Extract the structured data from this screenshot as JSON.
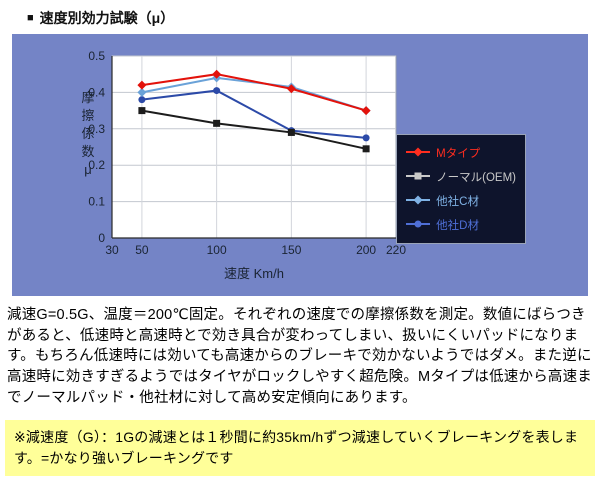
{
  "header": {
    "bullet": "■",
    "title": "速度別効力試験（μ）"
  },
  "chart_data": {
    "type": "line",
    "x": [
      50,
      100,
      150,
      200
    ],
    "series": [
      {
        "name": "Mタイプ",
        "values": [
          0.42,
          0.45,
          0.41,
          0.35
        ],
        "color": "#e3120b",
        "legend_color": "#ff2d1f",
        "marker": "diamond"
      },
      {
        "name": "ノーマル(OEM)",
        "values": [
          0.35,
          0.315,
          0.29,
          0.245
        ],
        "color": "#1c1c1c",
        "legend_color": "#c9c9c9",
        "marker": "square"
      },
      {
        "name": "他社C材",
        "values": [
          0.4,
          0.44,
          0.415,
          0.35
        ],
        "color": "#6aa2d8",
        "legend_color": "#7fb2e5",
        "marker": "diamond"
      },
      {
        "name": "他社D材",
        "values": [
          0.38,
          0.405,
          0.295,
          0.275
        ],
        "color": "#2c4aa8",
        "legend_color": "#4f6fd6",
        "marker": "circle"
      }
    ],
    "xlabel": "速度 Km/h",
    "ylabel": "摩擦係数μ",
    "xticks": [
      30,
      50,
      100,
      150,
      200,
      220
    ],
    "yticks": [
      0,
      0.1,
      0.2,
      0.3,
      0.4,
      0.5
    ],
    "xlim": [
      30,
      220
    ],
    "ylim": [
      0,
      0.5
    ],
    "grid": true,
    "legend_position": "inside-right",
    "plot_bg": "#ffffff",
    "panel_bg": "#7484c6"
  },
  "description": "減速G=0.5G、温度＝200℃固定。それぞれの速度での摩擦係数を測定。数値にばらつきがあると、低速時と高速時とで効き具合が変わってしまい、扱いにくいパッドになります。もちろん低速時には効いても高速からのブレーキで効かないようではダメ。また逆に高速時に効きすぎるようではタイヤがロックしやすく超危険。Mタイプは低速から高速までノーマルパッド・他社材に対して高め安定傾向にあります。",
  "note": "※減速度（G）：1Gの減速とは１秒間に約35km/hずつ減速していくブレーキングを表します。=かなり強いブレーキングです"
}
